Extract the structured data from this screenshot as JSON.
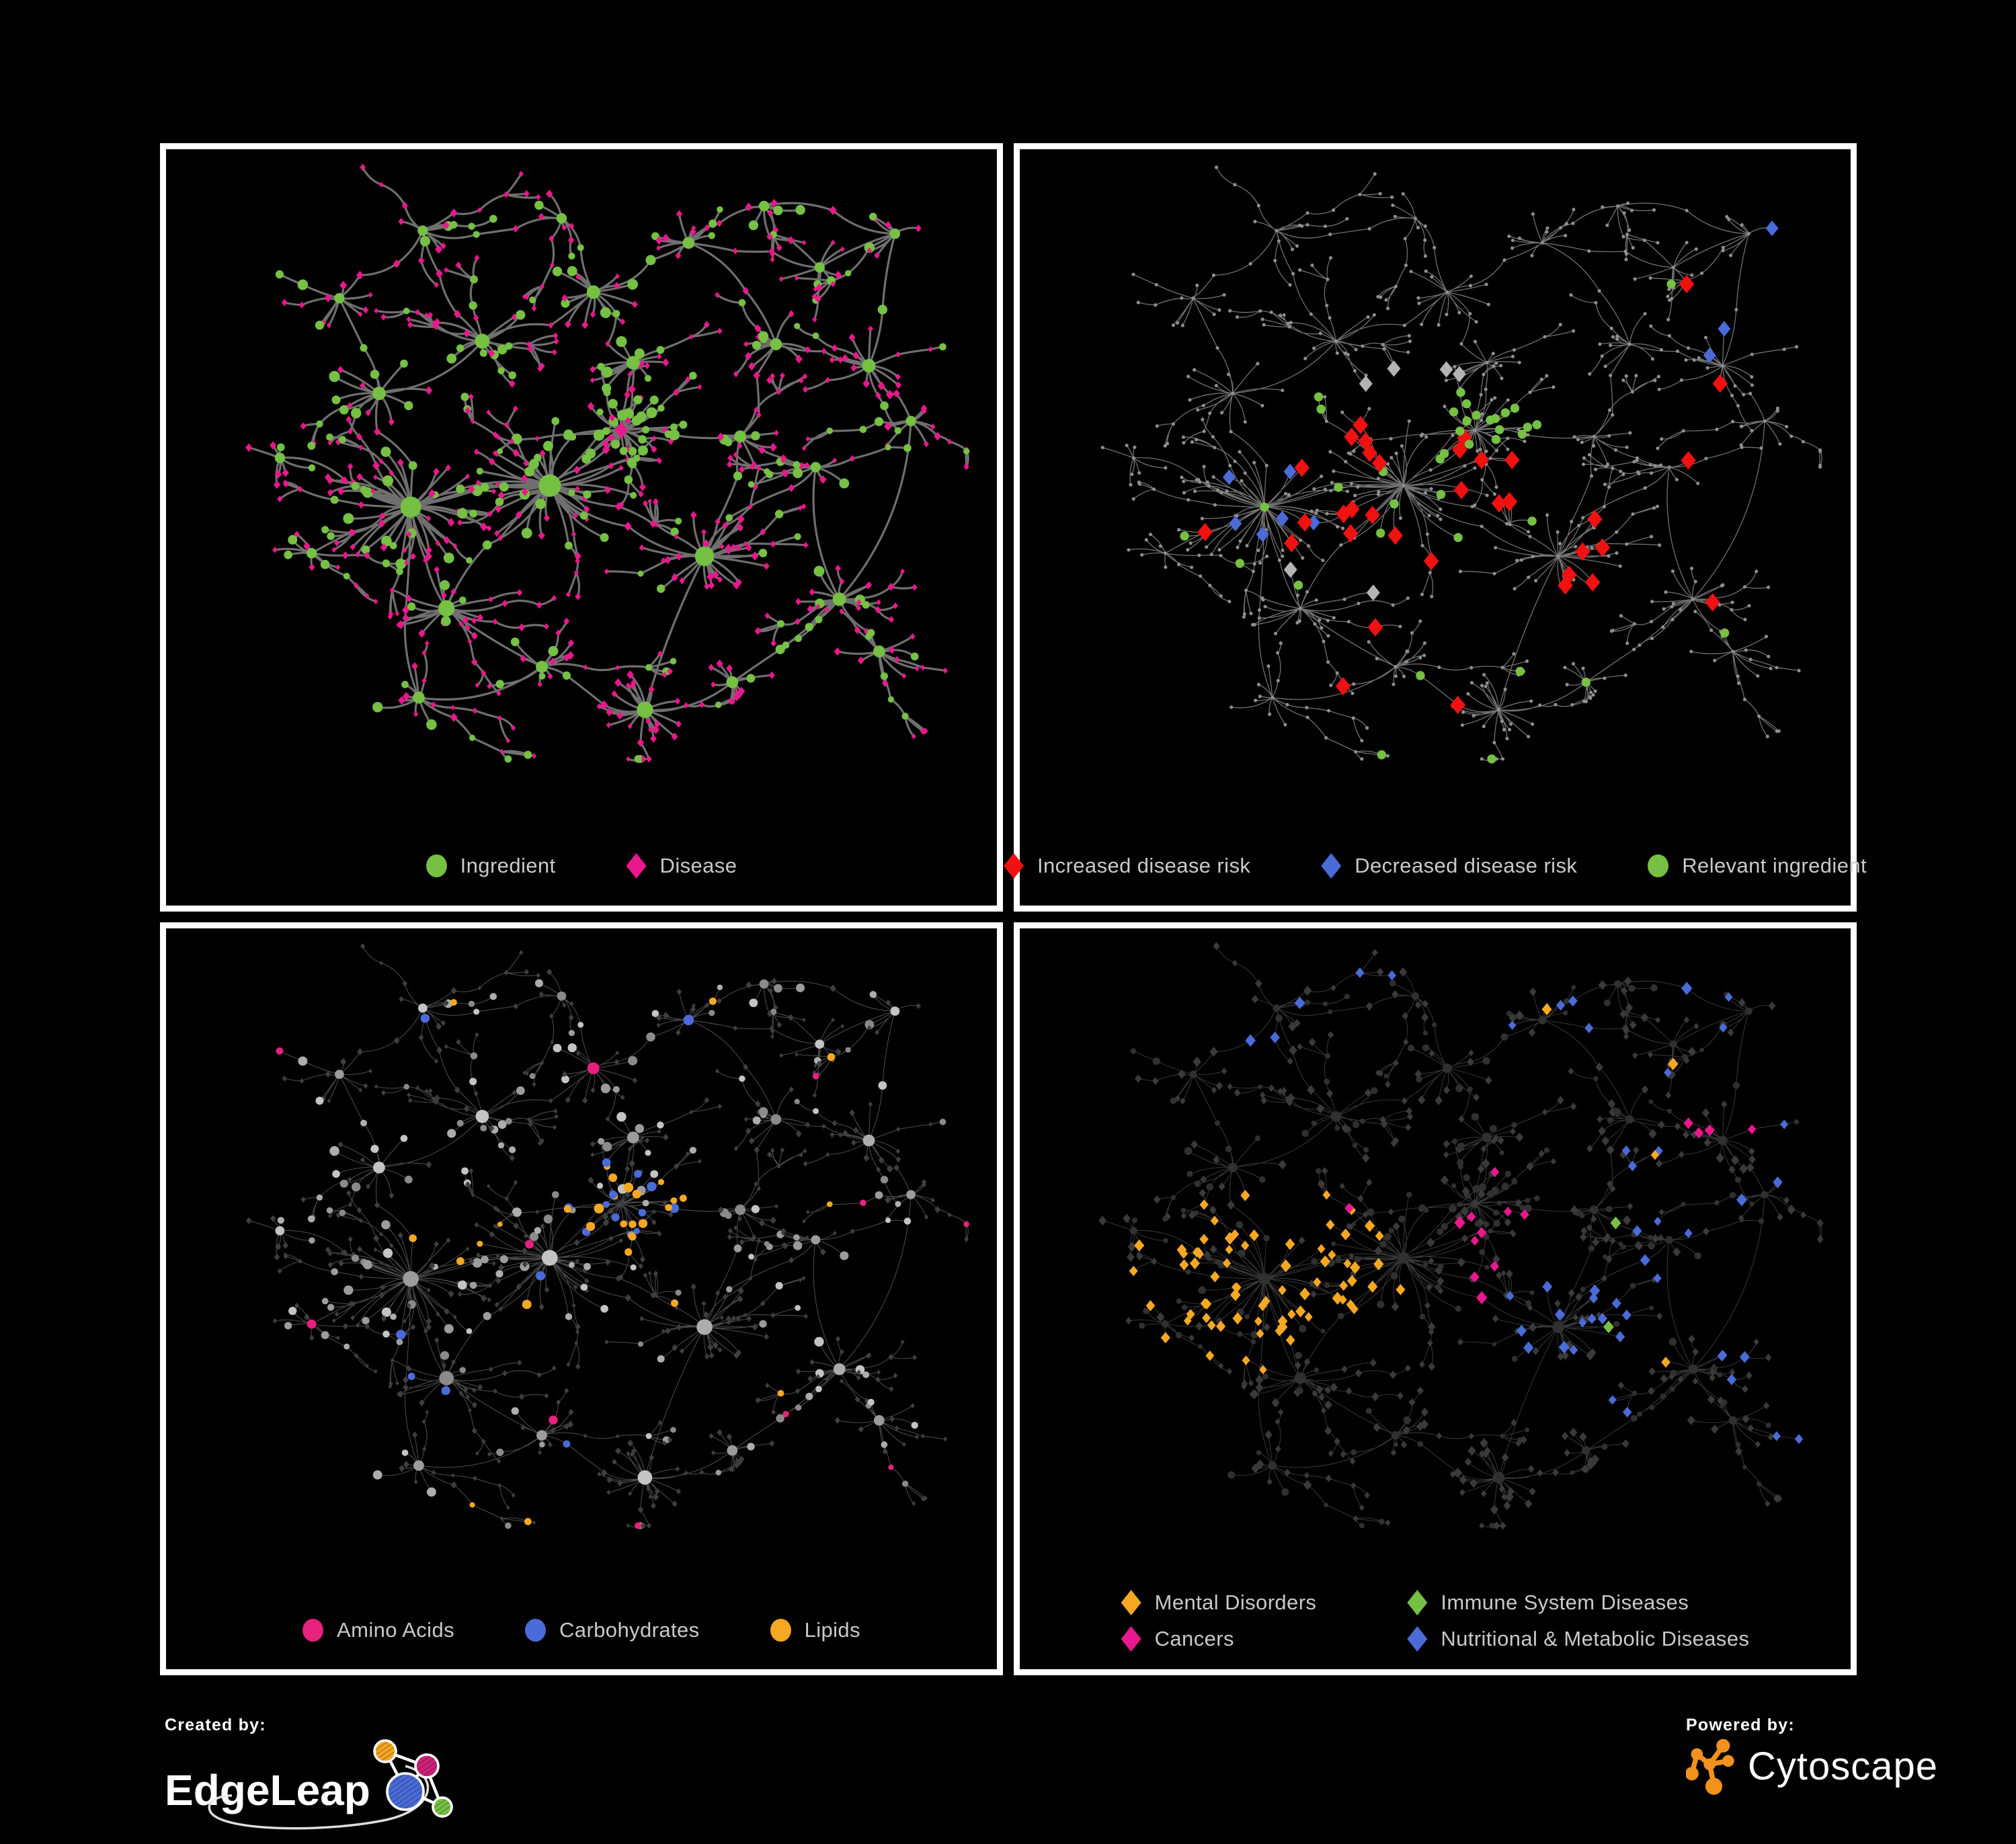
{
  "poster": {
    "background": "#000000",
    "panel_border": "#ffffff",
    "legend_text_color": "#c9c9c9"
  },
  "branding": {
    "created_by_label": "Created by:",
    "created_by_brand": "EdgeLeap",
    "powered_by_label": "Powered by:",
    "powered_by_brand": "Cytoscape",
    "edgeleap_colors": {
      "orange": "#f5a623",
      "magenta": "#cc2277",
      "blue": "#4a6bd8",
      "green": "#76c043"
    },
    "cytoscape_orange": "#f2921d"
  },
  "panels": [
    {
      "id": "ingredient-disease",
      "legend": [
        {
          "label": "Ingredient",
          "shape": "circle",
          "color": "#76c043"
        },
        {
          "label": "Disease",
          "shape": "diamond",
          "color": "#e9188c"
        }
      ],
      "legend_layout": "row"
    },
    {
      "id": "disease-risk",
      "legend": [
        {
          "label": "Increased disease risk",
          "shape": "diamond",
          "color": "#f01111"
        },
        {
          "label": "Decreased disease risk",
          "shape": "diamond",
          "color": "#4a6bd8"
        },
        {
          "label": "Relevant ingredient",
          "shape": "circle",
          "color": "#76c043"
        }
      ],
      "legend_layout": "row"
    },
    {
      "id": "nutrient-classes",
      "legend": [
        {
          "label": "Amino Acids",
          "shape": "circle",
          "color": "#e6217e"
        },
        {
          "label": "Carbohydrates",
          "shape": "circle",
          "color": "#4a6bd8"
        },
        {
          "label": "Lipids",
          "shape": "circle",
          "color": "#f6a823"
        }
      ],
      "legend_layout": "row"
    },
    {
      "id": "disease-categories",
      "legend": [
        {
          "label": "Mental Disorders",
          "shape": "diamond",
          "color": "#f6a823"
        },
        {
          "label": "Immune System Diseases",
          "shape": "diamond",
          "color": "#76c043"
        },
        {
          "label": "Cancers",
          "shape": "diamond",
          "color": "#e9188c"
        },
        {
          "label": "Nutritional & Metabolic Diseases",
          "shape": "diamond",
          "color": "#4a6bd8"
        }
      ],
      "legend_layout": "grid2"
    }
  ],
  "network": {
    "seed": 20240613,
    "hub_fields": [
      "x",
      "y",
      "leaves",
      "spread",
      "ing_frac",
      "size",
      "type"
    ],
    "hubs": [
      [
        0.46,
        0.53,
        48,
        0.085,
        0.45,
        15,
        "ingredient"
      ],
      [
        0.285,
        0.565,
        46,
        0.08,
        0.32,
        14,
        "ingredient"
      ],
      [
        0.55,
        0.44,
        34,
        0.052,
        0.78,
        12,
        "disease"
      ],
      [
        0.655,
        0.645,
        30,
        0.06,
        0.1,
        13,
        "ingredient"
      ],
      [
        0.33,
        0.73,
        22,
        0.055,
        0.25,
        11,
        "ingredient"
      ],
      [
        0.58,
        0.895,
        22,
        0.05,
        0.08,
        11,
        "ingredient"
      ],
      [
        0.245,
        0.38,
        13,
        0.05,
        0.3,
        9,
        "ingredient"
      ],
      [
        0.375,
        0.295,
        15,
        0.055,
        0.35,
        10,
        "ingredient"
      ],
      [
        0.515,
        0.215,
        13,
        0.05,
        0.35,
        9,
        "ingredient"
      ],
      [
        0.635,
        0.135,
        11,
        0.045,
        0.3,
        8,
        "ingredient"
      ],
      [
        0.745,
        0.3,
        11,
        0.045,
        0.3,
        8,
        "ingredient"
      ],
      [
        0.862,
        0.335,
        15,
        0.05,
        0.25,
        9,
        "ingredient"
      ],
      [
        0.915,
        0.425,
        9,
        0.04,
        0.3,
        7,
        "ingredient"
      ],
      [
        0.795,
        0.5,
        9,
        0.04,
        0.3,
        7,
        "ingredient"
      ],
      [
        0.825,
        0.715,
        18,
        0.05,
        0.2,
        9,
        "ingredient"
      ],
      [
        0.875,
        0.8,
        12,
        0.042,
        0.2,
        8,
        "ingredient"
      ],
      [
        0.69,
        0.85,
        11,
        0.04,
        0.2,
        8,
        "ingredient"
      ],
      [
        0.45,
        0.825,
        13,
        0.045,
        0.25,
        8,
        "ingredient"
      ],
      [
        0.295,
        0.875,
        11,
        0.042,
        0.2,
        8,
        "ingredient"
      ],
      [
        0.16,
        0.64,
        9,
        0.038,
        0.3,
        7,
        "ingredient"
      ],
      [
        0.195,
        0.225,
        9,
        0.04,
        0.3,
        7,
        "ingredient"
      ],
      [
        0.3,
        0.115,
        9,
        0.04,
        0.3,
        7,
        "ingredient"
      ],
      [
        0.475,
        0.095,
        7,
        0.035,
        0.3,
        7,
        "ingredient"
      ],
      [
        0.12,
        0.485,
        7,
        0.035,
        0.3,
        7,
        "ingredient"
      ],
      [
        0.73,
        0.075,
        7,
        0.035,
        0.3,
        7,
        "ingredient"
      ],
      [
        0.895,
        0.12,
        7,
        0.035,
        0.3,
        7,
        "ingredient"
      ],
      [
        0.565,
        0.33,
        12,
        0.045,
        0.5,
        9,
        "ingredient"
      ],
      [
        0.7,
        0.45,
        10,
        0.04,
        0.3,
        8,
        "ingredient"
      ],
      [
        0.8,
        0.175,
        8,
        0.04,
        0.3,
        7,
        "ingredient"
      ]
    ],
    "links": [
      [
        0,
        1
      ],
      [
        0,
        2
      ],
      [
        0,
        3
      ],
      [
        0,
        4
      ],
      [
        1,
        4
      ],
      [
        1,
        6
      ],
      [
        6,
        7
      ],
      [
        7,
        8
      ],
      [
        8,
        9
      ],
      [
        9,
        24
      ],
      [
        8,
        26
      ],
      [
        26,
        2
      ],
      [
        3,
        5
      ],
      [
        3,
        27
      ],
      [
        27,
        10
      ],
      [
        10,
        9
      ],
      [
        10,
        11
      ],
      [
        11,
        12
      ],
      [
        11,
        25
      ],
      [
        13,
        3
      ],
      [
        13,
        14
      ],
      [
        14,
        15
      ],
      [
        14,
        16
      ],
      [
        16,
        5
      ],
      [
        5,
        17
      ],
      [
        17,
        18
      ],
      [
        18,
        1
      ],
      [
        19,
        1
      ],
      [
        20,
        6
      ],
      [
        21,
        7
      ],
      [
        22,
        8
      ],
      [
        23,
        1
      ],
      [
        24,
        25
      ],
      [
        4,
        17
      ],
      [
        2,
        27
      ],
      [
        12,
        14
      ],
      [
        21,
        20
      ],
      [
        22,
        21
      ],
      [
        25,
        28
      ],
      [
        28,
        24
      ],
      [
        9,
        28
      ]
    ],
    "panel_styles": [
      {
        "edge": "#787878",
        "edge_width": 3.2,
        "edge_opacity": 0.92,
        "ingredient": "#76c043",
        "disease": "#e9188c"
      },
      {
        "edge": "#8a8a8a",
        "edge_width": 1.3,
        "edge_opacity": 0.82,
        "base_node": "#8f8f8f",
        "red": "#f01111",
        "blue": "#4a6bd8",
        "silver": "#b4b4b4",
        "green": "#76c043"
      },
      {
        "edge": "#b5b5b5",
        "edge_width": 1.05,
        "edge_opacity": 0.42,
        "gray_shades": [
          "#8a8a8a",
          "#9c9c9c",
          "#adadad",
          "#c4c4c4"
        ],
        "disease": "#3e3e3e",
        "amino": "#e6217e",
        "carb": "#4a6bd8",
        "lipid": "#f6a823"
      },
      {
        "edge": "#9a9a9a",
        "edge_width": 0.95,
        "edge_opacity": 0.38,
        "node": "#3a3a3a",
        "ingredient_node": "#303030",
        "mental": "#f6a823",
        "immune": "#76c043",
        "cancer": "#e9188c",
        "metabolic": "#4a6bd8"
      }
    ]
  }
}
